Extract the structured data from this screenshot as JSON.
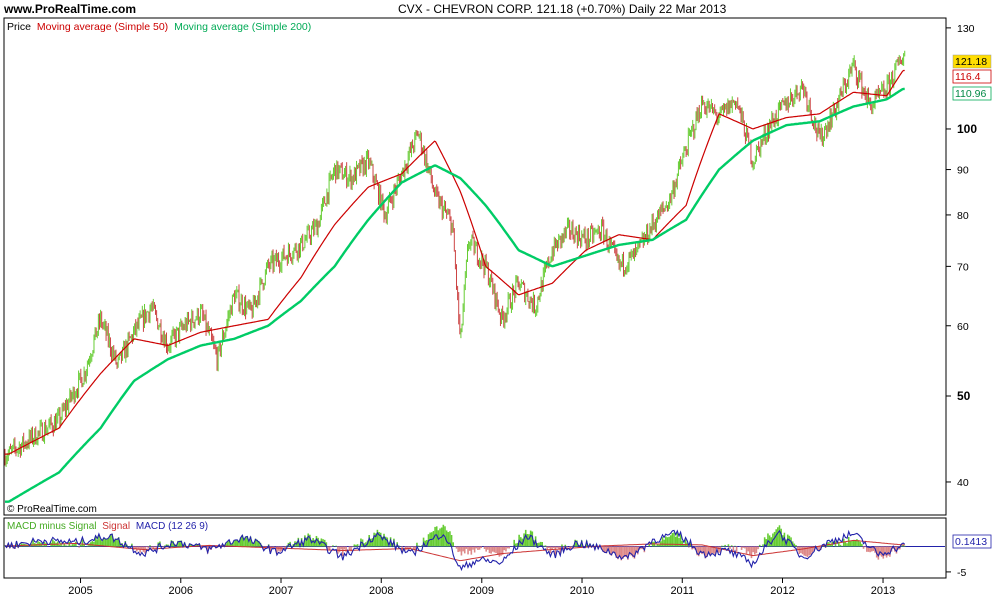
{
  "header": {
    "site": "www.ProRealTime.com",
    "title": "CVX - CHEVRON CORP.    121.18 (+0.70%)    Daily  22 Mar 2013"
  },
  "price_panel": {
    "legend": {
      "price": "Price",
      "ma50": "Moving average (Simple 50)",
      "ma200": "Moving average (Simple 200)"
    },
    "watermark": "© ProRealTime.com",
    "last_labels": {
      "price": "121.18",
      "ma50": "116.4",
      "ma200": "110.96"
    }
  },
  "macd_panel": {
    "legend": {
      "hist": "MACD minus Signal",
      "signal": "Signal",
      "macd": "MACD (12 26 9)"
    },
    "last_label": "0.1413"
  },
  "colors": {
    "price_up": "#66cc33",
    "price_down": "#cc4444",
    "ma50": "#cc0000",
    "ma200": "#00cc66",
    "macd": "#2222aa",
    "signal": "#cc3333",
    "hist": "#66cc33",
    "last_price_bg": "#ffdd00"
  },
  "chart_data": [
    {
      "type": "line",
      "title": "CVX - CHEVRON CORP.",
      "scale": "log",
      "ylim": [
        37,
        132
      ],
      "yticks": [
        40,
        50,
        60,
        70,
        80,
        90,
        100,
        130
      ],
      "xticks": [
        "2005",
        "2006",
        "2007",
        "2008",
        "2009",
        "2010",
        "2011",
        "2012",
        "2013"
      ],
      "series": [
        {
          "name": "Price",
          "x": [
            "2004-04",
            "2004-07",
            "2004-10",
            "2005-01",
            "2005-03",
            "2005-05",
            "2005-07",
            "2005-09",
            "2005-11",
            "2006-01",
            "2006-03",
            "2006-05",
            "2006-07",
            "2006-09",
            "2006-11",
            "2007-01",
            "2007-03",
            "2007-05",
            "2007-07",
            "2007-09",
            "2007-11",
            "2008-01",
            "2008-03",
            "2008-05",
            "2008-07",
            "2008-09",
            "2008-10",
            "2008-11",
            "2009-01",
            "2009-03",
            "2009-05",
            "2009-07",
            "2009-09",
            "2009-11",
            "2010-01",
            "2010-03",
            "2010-05",
            "2010-07",
            "2010-09",
            "2010-11",
            "2011-01",
            "2011-03",
            "2011-05",
            "2011-07",
            "2011-09",
            "2011-11",
            "2012-01",
            "2012-03",
            "2012-05",
            "2012-07",
            "2012-09",
            "2012-11",
            "2013-01",
            "2013-03"
          ],
          "values": [
            43,
            45,
            47,
            53,
            61,
            54,
            59,
            63,
            57,
            60,
            62,
            55,
            65,
            62,
            70,
            72,
            74,
            78,
            90,
            88,
            92,
            80,
            89,
            99,
            84,
            78,
            57,
            75,
            70,
            61,
            67,
            63,
            73,
            77,
            75,
            77,
            70,
            72,
            78,
            83,
            95,
            107,
            103,
            108,
            92,
            101,
            107,
            112,
            97,
            106,
            118,
            106,
            111,
            121.18
          ]
        },
        {
          "name": "Moving average (Simple 50)",
          "x": [
            "2004-04",
            "2004-10",
            "2005-03",
            "2005-07",
            "2005-11",
            "2006-03",
            "2006-07",
            "2006-11",
            "2007-03",
            "2007-07",
            "2007-11",
            "2008-03",
            "2008-07",
            "2008-10",
            "2009-01",
            "2009-05",
            "2009-09",
            "2010-01",
            "2010-05",
            "2010-09",
            "2011-01",
            "2011-05",
            "2011-09",
            "2012-01",
            "2012-05",
            "2012-09",
            "2013-01",
            "2013-03"
          ],
          "values": [
            43,
            46,
            53,
            58,
            57,
            59,
            60,
            61,
            68,
            78,
            86,
            89,
            97,
            85,
            70,
            65,
            67,
            73,
            76,
            75,
            82,
            104,
            100,
            103,
            104,
            110,
            109,
            116.4
          ]
        },
        {
          "name": "Moving average (Simple 200)",
          "x": [
            "2004-04",
            "2004-10",
            "2005-03",
            "2005-07",
            "2005-11",
            "2006-03",
            "2006-07",
            "2006-11",
            "2007-03",
            "2007-07",
            "2007-11",
            "2008-03",
            "2008-07",
            "2008-10",
            "2009-01",
            "2009-05",
            "2009-09",
            "2010-01",
            "2010-05",
            "2010-09",
            "2011-01",
            "2011-05",
            "2011-09",
            "2012-01",
            "2012-05",
            "2012-09",
            "2013-01",
            "2013-03"
          ],
          "values": [
            38,
            41,
            46,
            52,
            55,
            57,
            58,
            60,
            64,
            70,
            79,
            87,
            91,
            88,
            82,
            73,
            70,
            72,
            74,
            75,
            79,
            90,
            97,
            101,
            102,
            106,
            108,
            110.96
          ]
        }
      ]
    },
    {
      "type": "line",
      "title": "MACD (12 26 9)",
      "ylim": [
        -6,
        5
      ],
      "yticks": [
        -5
      ],
      "series": [
        {
          "name": "MACD (12 26 9)",
          "x": [
            "2004-04",
            "2004-08",
            "2004-12",
            "2005-04",
            "2005-08",
            "2005-12",
            "2006-04",
            "2006-08",
            "2006-12",
            "2007-04",
            "2007-08",
            "2007-12",
            "2008-04",
            "2008-08",
            "2008-10",
            "2008-12",
            "2009-03",
            "2009-06",
            "2009-09",
            "2009-12",
            "2010-03",
            "2010-06",
            "2010-09",
            "2010-12",
            "2011-03",
            "2011-06",
            "2011-09",
            "2011-12",
            "2012-03",
            "2012-06",
            "2012-09",
            "2012-12",
            "2013-03"
          ],
          "values": [
            0.2,
            1.2,
            0.8,
            2.1,
            -1.4,
            0.9,
            -0.6,
            1.8,
            -1.2,
            1.5,
            -2.1,
            2.3,
            -1.6,
            2.8,
            -4.5,
            -2.6,
            -3.2,
            2.1,
            -1.8,
            0.7,
            -0.5,
            -2.3,
            1.2,
            2.6,
            -1.5,
            -0.8,
            -3.4,
            2.9,
            -2.2,
            0.8,
            2.5,
            -1.5,
            0.14
          ]
        },
        {
          "name": "Signal",
          "x": [
            "2004-04",
            "2004-12",
            "2005-08",
            "2006-04",
            "2006-12",
            "2007-08",
            "2008-04",
            "2008-10",
            "2009-03",
            "2009-09",
            "2010-03",
            "2010-09",
            "2011-03",
            "2011-09",
            "2012-03",
            "2012-09",
            "2013-03"
          ],
          "values": [
            0.1,
            0.6,
            -0.6,
            0.2,
            -0.3,
            -0.8,
            -0.4,
            -2.8,
            -1.4,
            -0.6,
            0.1,
            0.5,
            0.3,
            -1.8,
            -0.5,
            1.2,
            0.3
          ]
        }
      ]
    }
  ]
}
